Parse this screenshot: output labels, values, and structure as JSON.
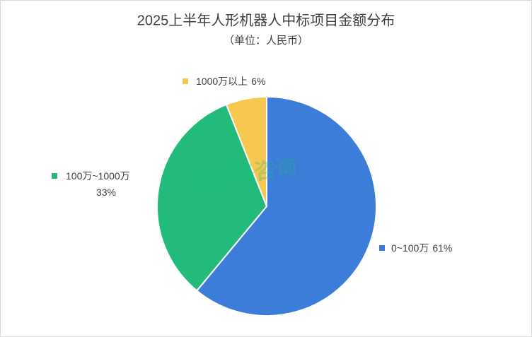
{
  "chart_data": {
    "type": "pie",
    "title": "2025上半年人形机器人中标项目金额分布",
    "subtitle": "（单位：人民币）",
    "watermark": "新战略咨询",
    "categories": [
      "0~100万",
      "100万~1000万",
      "1000万以上"
    ],
    "values": [
      61,
      33,
      6
    ],
    "value_labels": [
      "61%",
      "33%",
      "6%"
    ],
    "colors": [
      "#3b7dd8",
      "#22bb7c",
      "#f6c851"
    ]
  }
}
